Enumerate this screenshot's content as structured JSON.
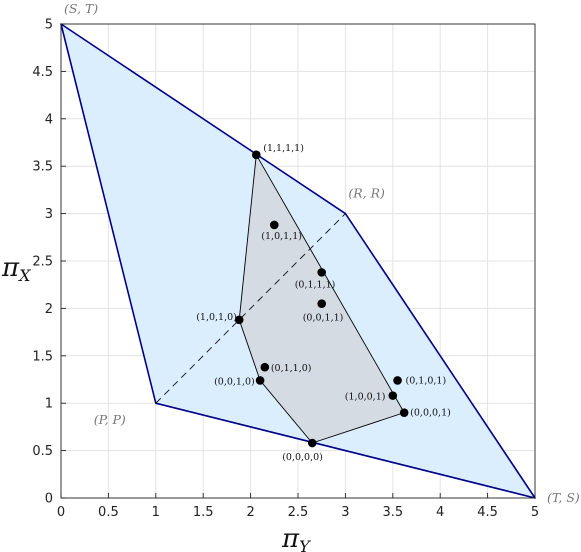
{
  "chart_data": {
    "type": "scatter",
    "xlabel": "π",
    "xlabel_sub": "Y",
    "ylabel": "π",
    "ylabel_sub": "X",
    "xlim": [
      0,
      5
    ],
    "ylim": [
      0,
      5
    ],
    "grid": true,
    "xticks": [
      "0",
      "0.5",
      "1",
      "1.5",
      "2",
      "2.5",
      "3",
      "3.5",
      "4",
      "4.5",
      "5"
    ],
    "yticks": [
      "0",
      "0.5",
      "1",
      "1.5",
      "2",
      "2.5",
      "3",
      "3.5",
      "4",
      "4.5",
      "5"
    ],
    "outer_region": {
      "fill": "#dbeefd",
      "stroke": "#00008b",
      "vertices": [
        [
          0,
          5
        ],
        [
          3,
          3
        ],
        [
          5,
          0
        ],
        [
          1,
          1
        ]
      ]
    },
    "inner_region": {
      "fill": "#d4dbe3",
      "stroke": "#000000",
      "vertices": [
        [
          2.06,
          3.62
        ],
        [
          3.62,
          0.9
        ],
        [
          2.65,
          0.58
        ],
        [
          2.1,
          1.24
        ],
        [
          1.88,
          1.88
        ]
      ]
    },
    "diagonal": {
      "from": [
        1,
        1
      ],
      "to": [
        3,
        3
      ],
      "style": "dashed"
    },
    "corner_labels": [
      {
        "label": "(S, T)",
        "x": 0,
        "y": 5
      },
      {
        "label": "(R, R)",
        "x": 3,
        "y": 3
      },
      {
        "label": "(P, P)",
        "x": 1,
        "y": 1
      },
      {
        "label": "(T, S)",
        "x": 5,
        "y": 0
      }
    ],
    "points": [
      {
        "label": "(1,1,1,1)",
        "x": 2.06,
        "y": 3.62
      },
      {
        "label": "(1,0,1,1)",
        "x": 2.25,
        "y": 2.88
      },
      {
        "label": "(0,1,1,1)",
        "x": 2.75,
        "y": 2.38
      },
      {
        "label": "(0,0,1,1)",
        "x": 2.75,
        "y": 2.05
      },
      {
        "label": "(1,0,1,0)",
        "x": 1.88,
        "y": 1.88
      },
      {
        "label": "(0,1,1,0)",
        "x": 2.15,
        "y": 1.38
      },
      {
        "label": "(0,0,1,0)",
        "x": 2.1,
        "y": 1.24
      },
      {
        "label": "(0,1,0,1)",
        "x": 3.55,
        "y": 1.24
      },
      {
        "label": "(1,0,0,1)",
        "x": 3.5,
        "y": 1.08
      },
      {
        "label": "(0,0,0,1)",
        "x": 3.62,
        "y": 0.9
      },
      {
        "label": "(0,0,0,0)",
        "x": 2.65,
        "y": 0.58
      }
    ]
  }
}
